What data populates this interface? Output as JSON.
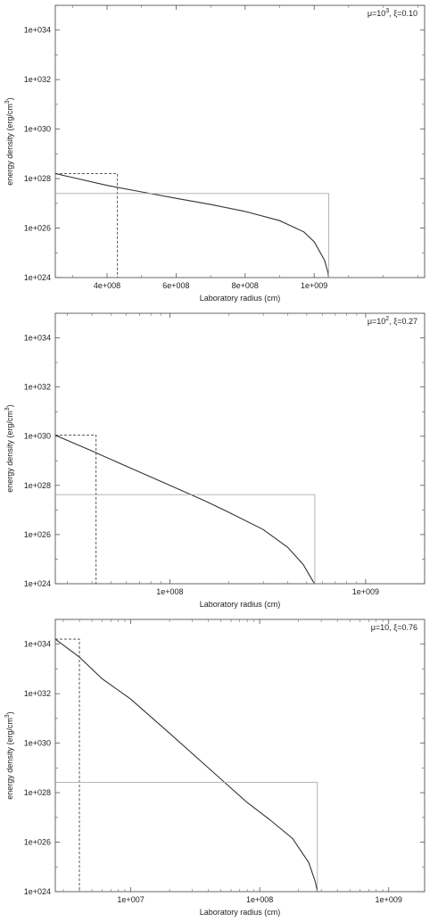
{
  "chart_data": [
    {
      "type": "line",
      "legend_label": "μ=10",
      "legend_sup": "3",
      "legend_rest": ", ξ=0.10",
      "xlabel": "Laboratory radius (cm)",
      "ylabel_main": "energy density (erg/cm",
      "ylabel_sup": "3",
      "ylabel_end": ")",
      "xscale": "linear",
      "yscale": "log",
      "xlim": [
        250000000.0,
        1320000000.0
      ],
      "ylim": [
        1e+24,
        1e+35
      ],
      "xticks": [
        400000000.0,
        600000000.0,
        800000000.0,
        1000000000.0
      ],
      "xtick_labels": [
        "4e+008",
        "6e+008",
        "8e+008",
        "1e+009"
      ],
      "yticks": [
        1e+24,
        1e+26,
        1e+28,
        1e+30,
        1e+32,
        1e+34
      ],
      "ytick_labels": [
        "1e+024",
        "1e+026",
        "1e+028",
        "1e+030",
        "1e+032",
        "1e+034"
      ],
      "grid": false,
      "legend_position": "top-right",
      "series": [
        {
          "style": "solid",
          "color": "#333333",
          "x": [
            250000000.0,
            300000000.0,
            400000000.0,
            500000000.0,
            600000000.0,
            700000000.0,
            800000000.0,
            900000000.0,
            970000000.0,
            1000000000.0,
            1030000000.0,
            1040000000.0,
            1042000000.0
          ],
          "y": [
            1.6e+28,
            1.1e+28,
            5.3e+27,
            2.9e+27,
            1.6e+27,
            9e+26,
            4.7e+26,
            2e+26,
            7e+25,
            2.8e+25,
            5e+24,
            1.6e+24,
            1e+24
          ]
        },
        {
          "style": "dashed",
          "color": "#444444",
          "x": [
            250000000.0,
            430000000.0,
            430000000.0
          ],
          "y": [
            1.6e+28,
            1.6e+28,
            1e+24
          ]
        },
        {
          "style": "solid-light",
          "color": "#aaaaaa",
          "x": [
            250000000.0,
            1042000000.0,
            1042000000.0
          ],
          "y": [
            2.5e+27,
            2.5e+27,
            1e+24
          ]
        }
      ]
    },
    {
      "type": "line",
      "legend_label": "μ=10",
      "legend_sup": "2",
      "legend_rest": ", ξ=0.27",
      "xlabel": "Laboratory radius (cm)",
      "ylabel_main": "energy density (erg/cm",
      "ylabel_sup": "3",
      "ylabel_end": ")",
      "xscale": "log",
      "yscale": "log",
      "xlim": [
        26000000.0,
        2000000000.0
      ],
      "ylim": [
        1e+24,
        1e+35
      ],
      "xticks": [
        100000000.0,
        1000000000.0
      ],
      "xtick_labels": [
        "1e+008",
        "1e+009"
      ],
      "yticks": [
        1e+24,
        1e+26,
        1e+28,
        1e+30,
        1e+32,
        1e+34
      ],
      "ytick_labels": [
        "1e+024",
        "1e+026",
        "1e+028",
        "1e+030",
        "1e+032",
        "1e+034"
      ],
      "grid": false,
      "legend_position": "top-right",
      "series": [
        {
          "style": "solid",
          "color": "#333333",
          "x": [
            26000000.0,
            40000000.0,
            60000000.0,
            100000000.0,
            150000000.0,
            200000000.0,
            300000000.0,
            400000000.0,
            480000000.0,
            520000000.0,
            540000000.0,
            550000000.0
          ],
          "y": [
            1.1e+30,
            2.5e+29,
            6e+28,
            1e+28,
            2.4e+27,
            8e+26,
            1.6e+26,
            3e+25,
            6e+24,
            2e+24,
            1.2e+24,
            1e+24
          ]
        },
        {
          "style": "dashed",
          "color": "#444444",
          "x": [
            26000000.0,
            42000000.0,
            42000000.0
          ],
          "y": [
            1.1e+30,
            1.1e+30,
            1e+24
          ]
        },
        {
          "style": "solid-light",
          "color": "#aaaaaa",
          "x": [
            26000000.0,
            550000000.0,
            550000000.0
          ],
          "y": [
            4.2e+27,
            4.2e+27,
            1e+24
          ]
        }
      ]
    },
    {
      "type": "line",
      "legend_label": "μ=10, ξ=0.76",
      "legend_sup": "",
      "legend_rest": "",
      "xlabel": "Laboratory radius (cm)",
      "ylabel_main": "energy density (erg/cm",
      "ylabel_sup": "3",
      "ylabel_end": ")",
      "xscale": "log",
      "yscale": "log",
      "xlim": [
        2600000.0,
        1900000000.0
      ],
      "ylim": [
        1e+24,
        1e+35
      ],
      "xticks": [
        10000000.0,
        100000000.0,
        1000000000.0
      ],
      "xtick_labels": [
        "1e+007",
        "1e+008",
        "1e+009"
      ],
      "yticks": [
        1e+24,
        1e+26,
        1e+28,
        1e+30,
        1e+32,
        1e+34
      ],
      "ytick_labels": [
        "1e+024",
        "1e+026",
        "1e+028",
        "1e+030",
        "1e+032",
        "1e+034"
      ],
      "grid": false,
      "legend_position": "top-right",
      "series": [
        {
          "style": "solid",
          "color": "#333333",
          "x": [
            2600000.0,
            4000000.0,
            6000000.0,
            10000000.0,
            20000000.0,
            40000000.0,
            80000000.0,
            120000000.0,
            180000000.0,
            240000000.0,
            270000000.0,
            280000000.0
          ],
          "y": [
            1.6e+34,
            3e+33,
            4e+32,
            6e+31,
            2.5e+30,
            1e+29,
            4e+27,
            8e+26,
            1.4e+26,
            1.5e+25,
            2.5e+24,
            1e+24
          ]
        },
        {
          "style": "dashed",
          "color": "#444444",
          "x": [
            2600000.0,
            4000000.0,
            4000000.0
          ],
          "y": [
            1.6e+34,
            1.6e+34,
            1e+24
          ]
        },
        {
          "style": "solid-light",
          "color": "#aaaaaa",
          "x": [
            2600000.0,
            280000000.0,
            280000000.0
          ],
          "y": [
            2.6e+28,
            2.6e+28,
            1e+24
          ]
        }
      ]
    }
  ]
}
